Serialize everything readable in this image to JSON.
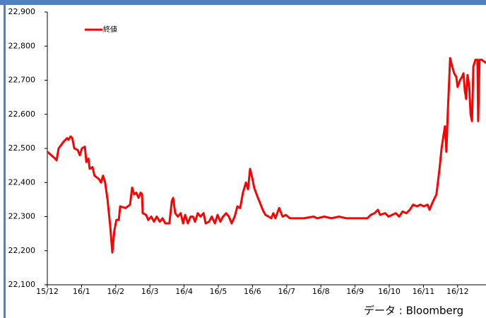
{
  "chart_data": {
    "type": "line",
    "series": [
      {
        "name": "終値",
        "color": "#ff0000",
        "x": [
          0,
          0.23,
          0.27,
          0.33,
          0.48,
          0.58,
          0.62,
          0.68,
          0.73,
          0.79,
          0.89,
          0.95,
          1.01,
          1.1,
          1.14,
          1.2,
          1.24,
          1.32,
          1.38,
          1.51,
          1.57,
          1.63,
          1.69,
          1.76,
          1.84,
          1.9,
          1.96,
          2.02,
          2.09,
          2.13,
          2.29,
          2.42,
          2.48,
          2.54,
          2.6,
          2.67,
          2.73,
          2.77,
          2.79,
          2.89,
          2.95,
          3.04,
          3.12,
          3.2,
          3.29,
          3.37,
          3.45,
          3.57,
          3.64,
          3.68,
          3.74,
          3.82,
          3.9,
          3.97,
          4.03,
          4.11,
          4.19,
          4.26,
          4.32,
          4.4,
          4.48,
          4.57,
          4.63,
          4.73,
          4.81,
          4.9,
          4.98,
          5.06,
          5.14,
          5.23,
          5.31,
          5.39,
          5.48,
          5.56,
          5.64,
          5.72,
          5.81,
          5.87,
          5.93,
          5.99,
          6.05,
          6.14,
          6.22,
          6.3,
          6.38,
          6.47,
          6.55,
          6.61,
          6.67,
          6.78,
          6.88,
          6.98,
          7.09,
          7.5,
          7.79,
          7.89,
          8.1,
          8.31,
          8.53,
          8.74,
          8.95,
          9.36,
          9.46,
          9.57,
          9.67,
          9.73,
          9.88,
          9.98,
          10.19,
          10.29,
          10.39,
          10.5,
          10.6,
          10.7,
          10.81,
          10.91,
          11.01,
          11.12,
          11.18,
          11.26,
          11.38,
          11.47,
          11.53,
          11.59,
          11.63,
          11.67,
          11.71,
          11.78,
          11.84,
          11.9,
          11.96,
          12.0,
          12.07,
          12.13,
          12.17,
          12.21,
          12.25,
          12.29,
          12.34,
          12.38,
          12.42,
          12.46,
          12.52,
          12.58,
          12.6,
          12.64,
          12.71,
          12.77,
          12.83
        ],
        "values": [
          22490,
          22470,
          22465,
          22500,
          22520,
          22530,
          22525,
          22535,
          22530,
          22500,
          22495,
          22480,
          22500,
          22505,
          22460,
          22470,
          22440,
          22445,
          22420,
          22410,
          22400,
          22420,
          22400,
          22350,
          22270,
          22195,
          22260,
          22290,
          22290,
          22330,
          22325,
          22335,
          22385,
          22365,
          22370,
          22355,
          22370,
          22365,
          22310,
          22305,
          22290,
          22300,
          22285,
          22300,
          22285,
          22295,
          22280,
          22280,
          22345,
          22355,
          22310,
          22300,
          22310,
          22280,
          22305,
          22280,
          22300,
          22300,
          22285,
          22310,
          22300,
          22310,
          22280,
          22285,
          22300,
          22280,
          22305,
          22285,
          22300,
          22310,
          22300,
          22280,
          22300,
          22330,
          22325,
          22370,
          22400,
          22380,
          22440,
          22415,
          22385,
          22360,
          22340,
          22320,
          22305,
          22300,
          22295,
          22310,
          22295,
          22325,
          22300,
          22305,
          22295,
          22295,
          22300,
          22295,
          22300,
          22295,
          22300,
          22295,
          22295,
          22295,
          22305,
          22310,
          22320,
          22305,
          22310,
          22300,
          22310,
          22300,
          22315,
          22310,
          22320,
          22335,
          22330,
          22335,
          22330,
          22335,
          22320,
          22340,
          22365,
          22440,
          22500,
          22540,
          22565,
          22490,
          22600,
          22765,
          22740,
          22720,
          22710,
          22680,
          22700,
          22710,
          22720,
          22670,
          22645,
          22715,
          22680,
          22600,
          22580,
          22740,
          22760,
          22760,
          22580,
          22760,
          22760,
          22755,
          22750
        ]
      }
    ],
    "xlim": [
      0,
      12.83
    ],
    "xticks": [
      {
        "value": 0,
        "label": "15/12"
      },
      {
        "value": 1,
        "label": "16/1"
      },
      {
        "value": 2,
        "label": "16/2"
      },
      {
        "value": 3,
        "label": "16/3"
      },
      {
        "value": 4,
        "label": "16/4"
      },
      {
        "value": 5,
        "label": "16/5"
      },
      {
        "value": 6,
        "label": "16/6"
      },
      {
        "value": 7,
        "label": "16/7"
      },
      {
        "value": 8,
        "label": "16/8"
      },
      {
        "value": 9,
        "label": "16/9"
      },
      {
        "value": 10,
        "label": "16/10"
      },
      {
        "value": 11,
        "label": "16/11"
      },
      {
        "value": 12,
        "label": "16/12"
      }
    ],
    "ylim": [
      22100,
      22900
    ],
    "yticks": [
      {
        "value": 22100,
        "label": "22,100"
      },
      {
        "value": 22200,
        "label": "22,200"
      },
      {
        "value": 22300,
        "label": "22,300"
      },
      {
        "value": 22400,
        "label": "22,400"
      },
      {
        "value": 22500,
        "label": "22,500"
      },
      {
        "value": 22600,
        "label": "22,600"
      },
      {
        "value": 22700,
        "label": "22,700"
      },
      {
        "value": 22800,
        "label": "22,800"
      },
      {
        "value": 22900,
        "label": "22,900"
      }
    ],
    "source": "データ : Bloomberg"
  }
}
